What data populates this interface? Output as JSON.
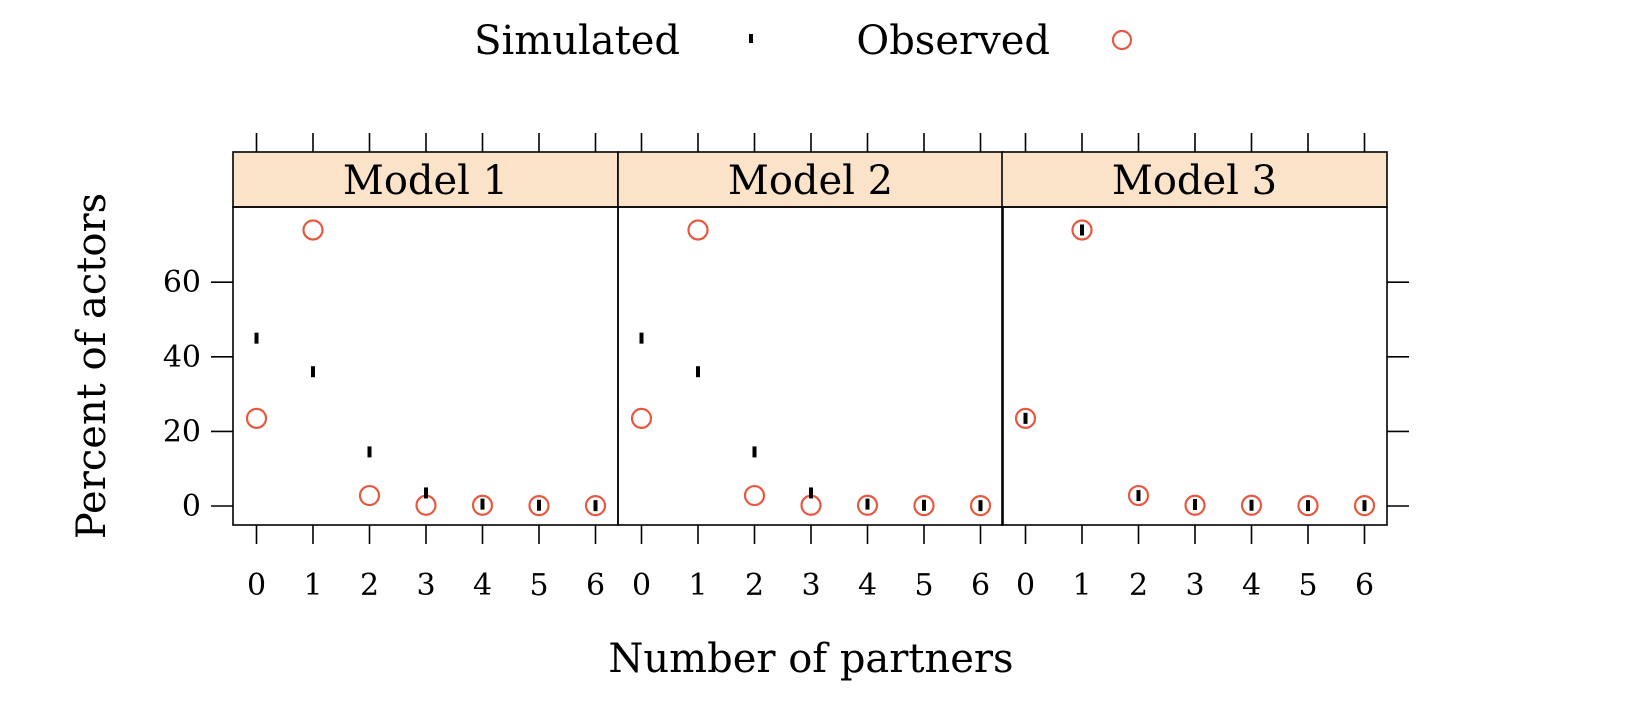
{
  "chart_data": {
    "type": "scatter",
    "xlabel": "Number of partners",
    "ylabel": "Percent of actors",
    "x": [
      0,
      1,
      2,
      3,
      4,
      5,
      6
    ],
    "xlim": [
      -0.4,
      6.4
    ],
    "ylim": [
      -5,
      80
    ],
    "yticks": [
      0,
      20,
      40,
      60
    ],
    "legend_position": "top",
    "legend": [
      {
        "label": "Simulated",
        "marker": "tick",
        "color": "#000000"
      },
      {
        "label": "Observed",
        "marker": "circle",
        "color": "#e8583f"
      }
    ],
    "strip_color": "#fae3c9",
    "panels": [
      {
        "title": "Model 1",
        "series": [
          {
            "name": "Simulated",
            "values": [
              45,
              36,
              14.5,
              3.5,
              0.5,
              0.2,
              0.1
            ]
          },
          {
            "name": "Observed",
            "values": [
              23.5,
              74,
              2.8,
              0.2,
              0.2,
              0.1,
              0.1
            ]
          }
        ]
      },
      {
        "title": "Model 2",
        "series": [
          {
            "name": "Simulated",
            "values": [
              45,
              36,
              14.5,
              3.5,
              0.5,
              0.2,
              0.1
            ]
          },
          {
            "name": "Observed",
            "values": [
              23.5,
              74,
              2.8,
              0.2,
              0.2,
              0.1,
              0.1
            ]
          }
        ]
      },
      {
        "title": "Model 3",
        "series": [
          {
            "name": "Simulated",
            "values": [
              23.5,
              74,
              2.8,
              0.4,
              0.2,
              0.1,
              0.1
            ]
          },
          {
            "name": "Observed",
            "values": [
              23.5,
              74,
              2.8,
              0.2,
              0.2,
              0.1,
              0.1
            ]
          }
        ]
      }
    ]
  }
}
